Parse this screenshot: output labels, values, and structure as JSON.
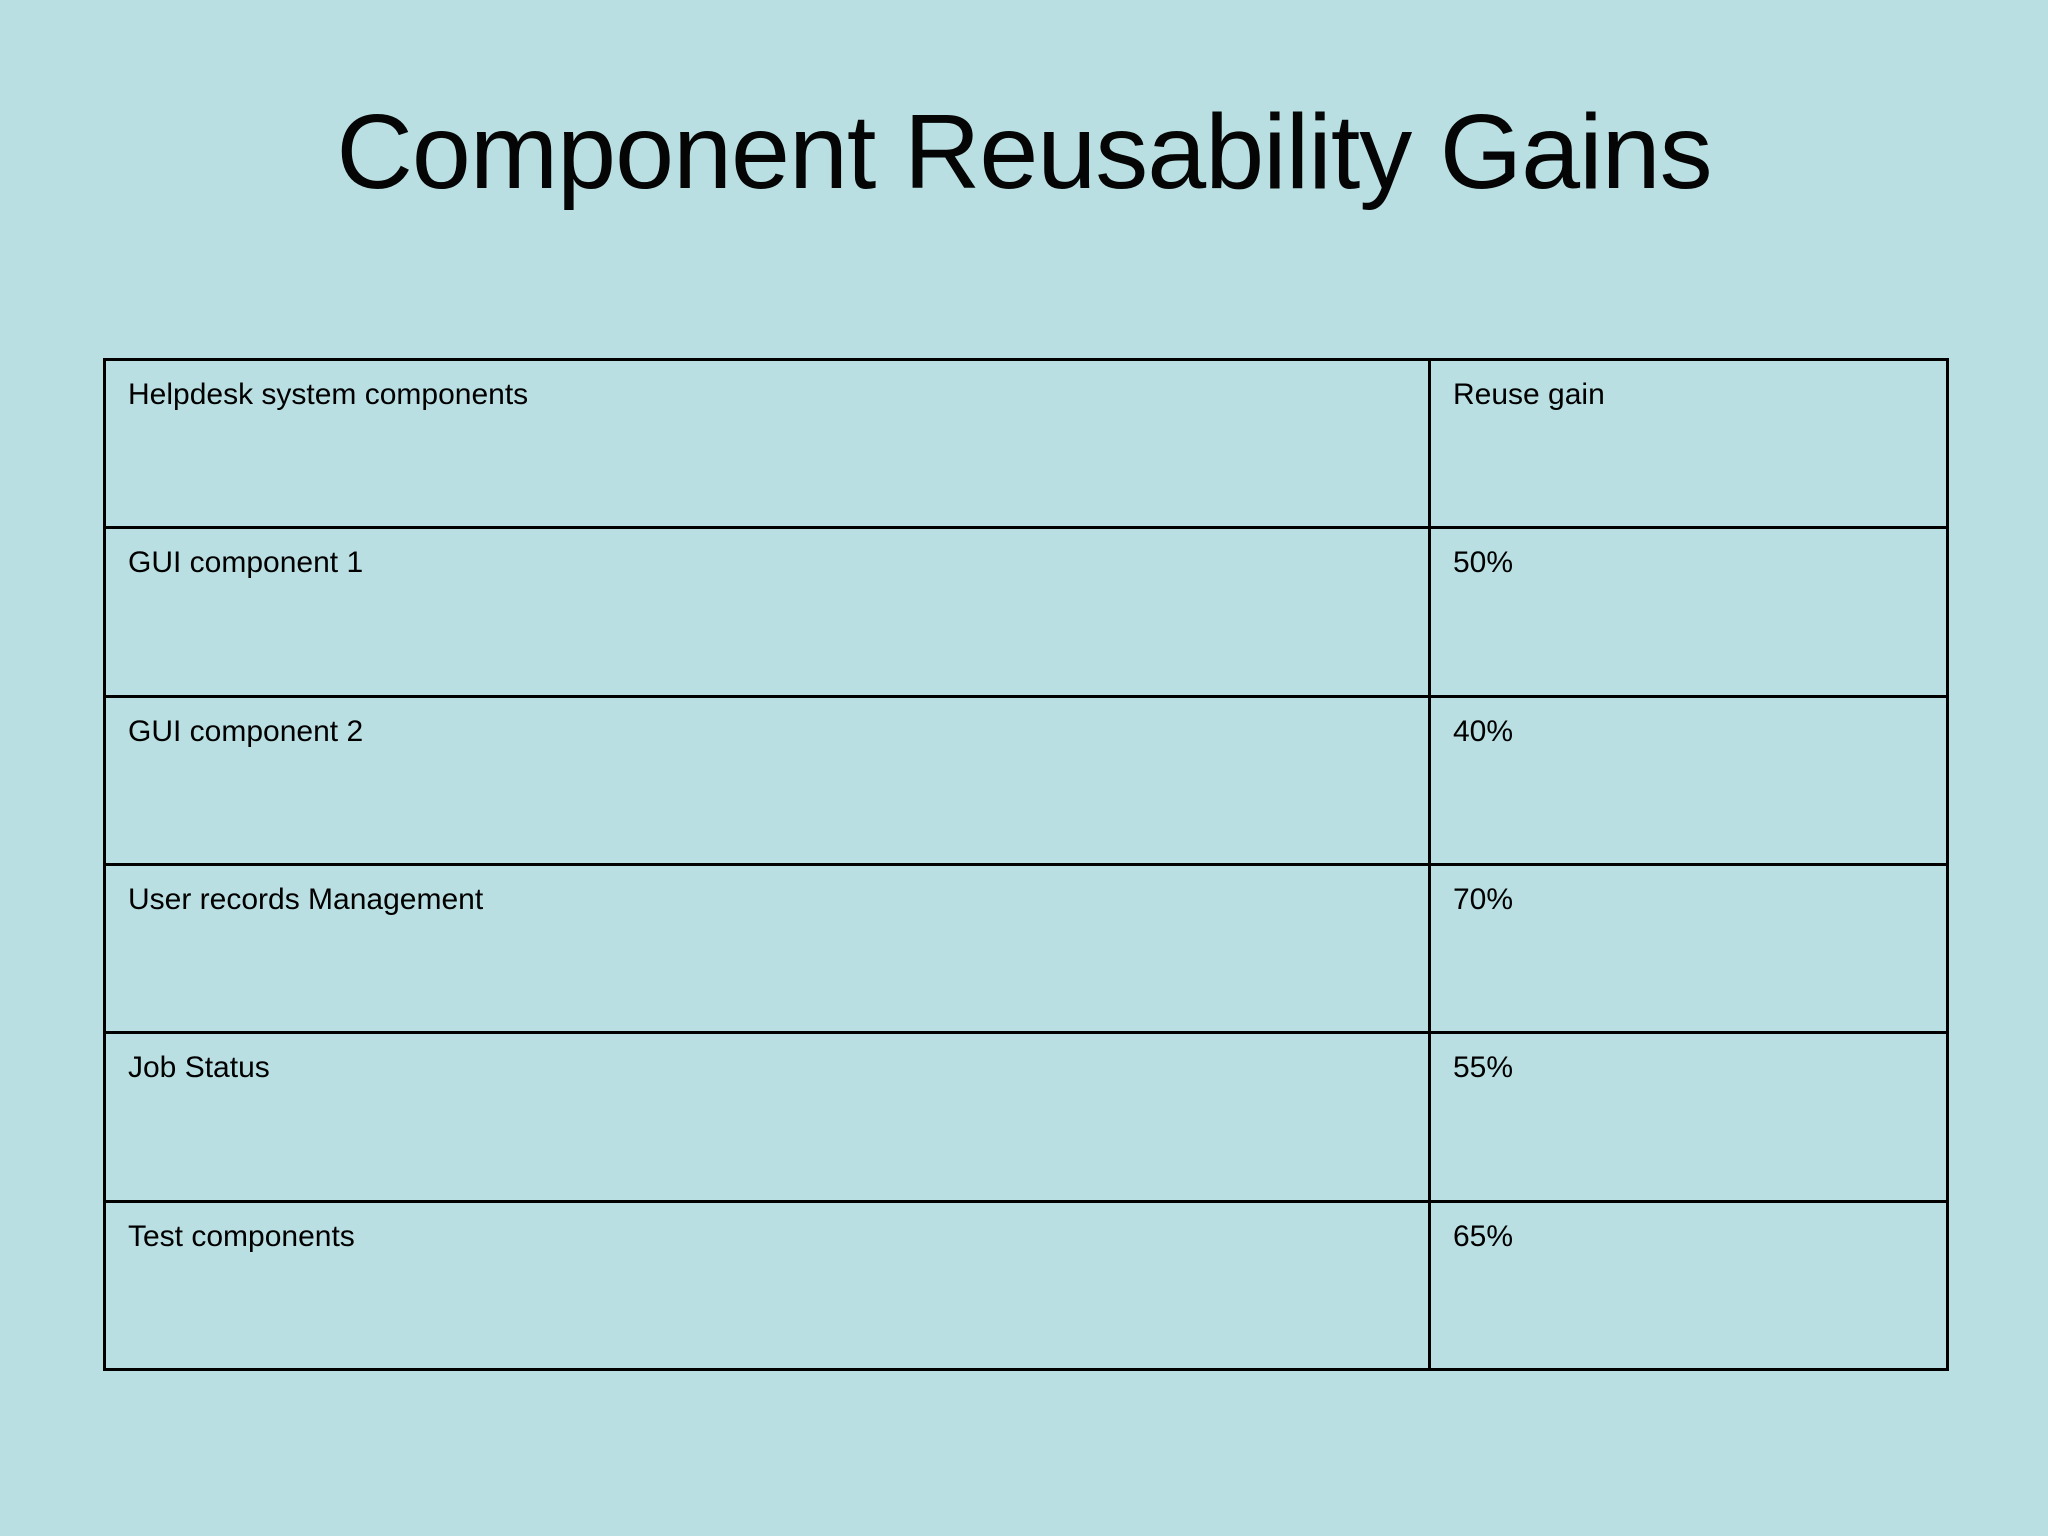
{
  "slide": {
    "title": "Component Reusability Gains"
  },
  "colors": {
    "background": "#b9dfe2",
    "text": "#000000",
    "table_border": "#000000"
  },
  "table": {
    "headers": [
      "Helpdesk system components",
      "Reuse gain"
    ],
    "rows": [
      {
        "component": "GUI component 1",
        "gain": "50%"
      },
      {
        "component": "GUI component 2",
        "gain": "40%"
      },
      {
        "component": "User records Management",
        "gain": "70%"
      },
      {
        "component": "Job Status",
        "gain": "55%"
      },
      {
        "component": "Test components",
        "gain": "65%"
      }
    ]
  }
}
